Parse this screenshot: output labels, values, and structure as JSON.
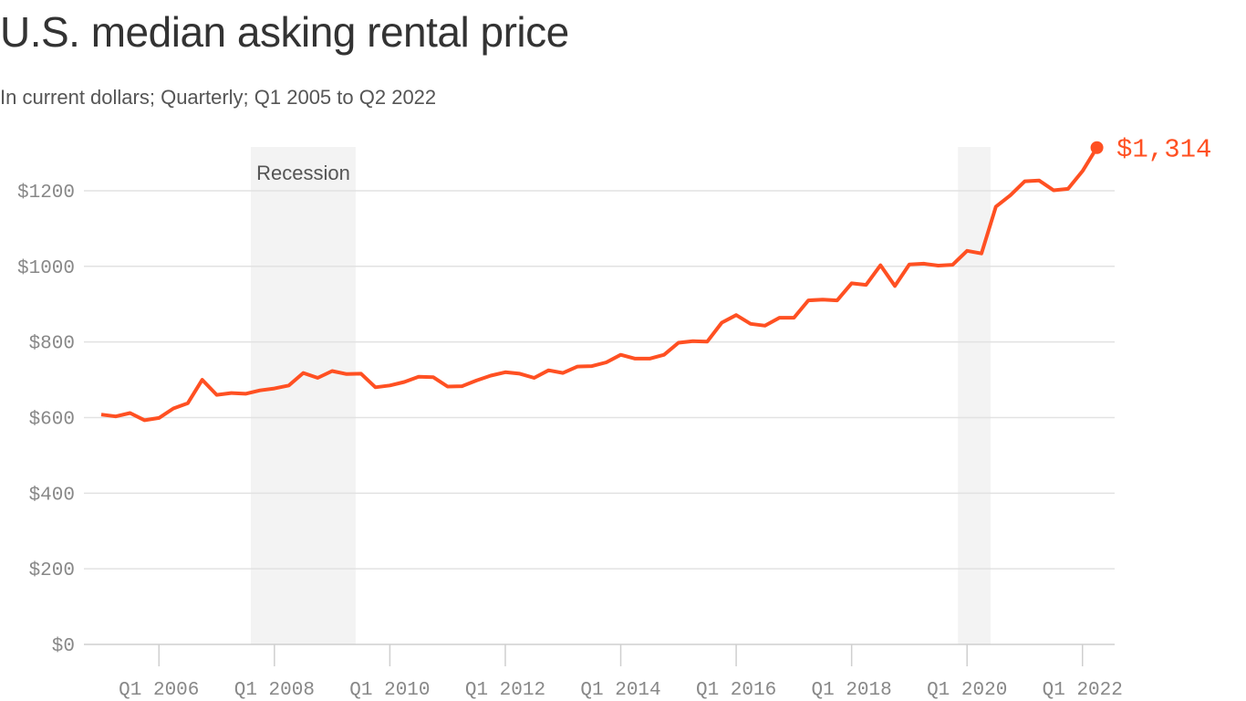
{
  "title": "U.S. median asking rental price",
  "subtitle": "In current dollars; Quarterly; Q1 2005 to Q2 2022",
  "chart_data": {
    "type": "line",
    "x_start": "Q1 2005",
    "x_end": "Q2 2022",
    "frequency": "quarterly",
    "values": [
      608,
      603,
      612,
      593,
      599,
      624,
      638,
      700,
      660,
      665,
      663,
      672,
      677,
      685,
      718,
      705,
      723,
      715,
      716,
      680,
      685,
      694,
      708,
      707,
      682,
      683,
      698,
      711,
      720,
      716,
      705,
      725,
      718,
      735,
      736,
      746,
      766,
      756,
      756,
      766,
      798,
      802,
      801,
      851,
      871,
      848,
      843,
      864,
      864,
      910,
      912,
      910,
      955,
      951,
      1003,
      948,
      1005,
      1007,
      1002,
      1004,
      1041,
      1034,
      1158,
      1188,
      1225,
      1227,
      1201,
      1205,
      1252,
      1314
    ],
    "ylim": [
      0,
      1300
    ],
    "yticks": [
      0,
      200,
      400,
      600,
      800,
      1000,
      1200
    ],
    "ytick_labels": [
      "$0",
      "$200",
      "$400",
      "$600",
      "$800",
      "$1000",
      "$1200"
    ],
    "xtick_years": [
      2006,
      2008,
      2010,
      2012,
      2014,
      2016,
      2018,
      2020,
      2022
    ],
    "xtick_labels": [
      "Q1 2006",
      "Q1 2008",
      "Q1 2010",
      "Q1 2012",
      "Q1 2014",
      "Q1 2016",
      "Q1 2018",
      "Q1 2020",
      "Q1 2022"
    ],
    "shaded_periods": [
      {
        "label": "Recession",
        "start": "Q4 2007",
        "end": "Q2 2009"
      },
      {
        "label": "",
        "start": "Q1 2020",
        "end": "Q2 2020"
      }
    ],
    "end_label": "$1,314",
    "grid": true,
    "line_color": "#ff5022",
    "shade_color": "#f3f3f3",
    "grid_color": "#e2e2e2"
  }
}
